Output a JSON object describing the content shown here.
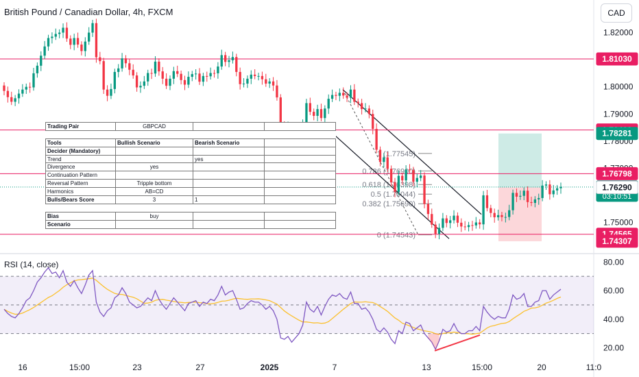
{
  "header": {
    "title": "British Pound / Canadian Dollar, 4h, FXCM",
    "currency_button": "CAD"
  },
  "rsi": {
    "title": "RSI (14, close)"
  },
  "scenario_table": {
    "rows": [
      [
        "Trading Pair",
        "GBPCAD",
        "",
        ""
      ],
      [
        "",
        "",
        "",
        ""
      ],
      [
        "Tools",
        "Bullish Scenario",
        "Bearish Scenario",
        ""
      ],
      [
        "Decider (Mandatory)",
        "",
        "",
        ""
      ],
      [
        "Trend",
        "",
        "yes",
        ""
      ],
      [
        "Divergence",
        "yes",
        "",
        ""
      ],
      [
        "Continuation Pattern",
        "",
        "",
        ""
      ],
      [
        "Reversal Pattern",
        "Tripple bottom",
        "",
        ""
      ],
      [
        "Harmonics",
        "AB=CD",
        "",
        ""
      ],
      [
        "Bulls/Bears Score",
        "3",
        "1",
        ""
      ],
      [
        "",
        "",
        "",
        ""
      ],
      [
        "Bias",
        "buy",
        "",
        ""
      ],
      [
        "Scenario",
        "",
        "",
        ""
      ]
    ]
  },
  "chart_data": [
    {
      "type": "candlestick",
      "title": "British Pound / Canadian Dollar, 4h, FXCM",
      "x_tick_labels": [
        "16",
        "15:00",
        "23",
        "27",
        "2025",
        "7",
        "13",
        "15:00",
        "20",
        "11:0"
      ],
      "y_tick_labels": [
        "1.82000",
        "1.80000",
        "1.79000",
        "1.78000",
        "1.77000",
        "1.75000"
      ],
      "ylim": [
        1.7385,
        1.8295
      ],
      "price_lines": [
        {
          "value": 1.8103,
          "label": "1.81030",
          "color": "#e91e63"
        },
        {
          "value": 1.78409,
          "label": "1.78409",
          "color": "#e91e63"
        },
        {
          "value": 1.76798,
          "label": "1.76798",
          "color": "#e91e63"
        },
        {
          "value": 1.74565,
          "label": "1.74565",
          "color": "#e91e63"
        }
      ],
      "price_labels": [
        {
          "value": 1.78281,
          "label": "1.78281",
          "color": "#089981"
        },
        {
          "value": 1.76306,
          "label": "1.76306",
          "sub": "03:10:51",
          "color": "#089981"
        },
        {
          "value": 1.7629,
          "label": "1.76290",
          "color": "#ffffff"
        },
        {
          "value": 1.74307,
          "label": "1.74307",
          "color": "#e91e63"
        }
      ],
      "fibonacci": [
        {
          "level": "1",
          "price": 1.77545,
          "label": "1 (1.77545)"
        },
        {
          "level": "0.786",
          "price": 1.769,
          "label": "0.786 (1.76900)"
        },
        {
          "level": "0.618",
          "price": 1.76398,
          "label": "0.618 (1.76398)"
        },
        {
          "level": "0.5",
          "price": 1.76044,
          "label": "0.5 (1.76044)"
        },
        {
          "level": "0.382",
          "price": 1.7569,
          "label": "0.382 (1.75690)"
        },
        {
          "level": "0",
          "price": 1.74543,
          "label": "0 (1.74543)"
        }
      ],
      "position": {
        "entry": 1.7629,
        "target": 1.78281,
        "stop": 1.74307
      },
      "close": [
        1.7985,
        1.7962,
        1.7945,
        1.7958,
        1.7975,
        1.799,
        1.8,
        1.7998,
        1.805,
        1.8078,
        1.8115,
        1.8149,
        1.818,
        1.8185,
        1.8195,
        1.82,
        1.8218,
        1.8178,
        1.8155,
        1.818,
        1.8156,
        1.8132,
        1.8167,
        1.82,
        1.8235,
        1.8109,
        1.8095,
        1.799,
        1.7967,
        1.7992,
        1.8055,
        1.8068,
        1.8105,
        1.8087,
        1.8063,
        1.8042,
        1.7998,
        1.8004,
        1.802,
        1.8051,
        1.8049,
        1.8093,
        1.8057,
        1.803,
        1.8004,
        1.803,
        1.8058,
        1.8048,
        1.8025,
        1.8008,
        1.8037,
        1.8047,
        1.8049,
        1.8019,
        1.804,
        1.8039,
        1.8051,
        1.805,
        1.8075,
        1.8117,
        1.8092,
        1.8098,
        1.811,
        1.8055,
        1.801,
        1.8012,
        1.803,
        1.8045,
        1.804,
        1.804,
        1.8028,
        1.8012,
        1.802,
        1.8005,
        1.7961,
        1.7857,
        1.7847,
        1.7852,
        1.7836,
        1.7838,
        1.7848,
        1.7868,
        1.794,
        1.7908,
        1.7893,
        1.7918,
        1.7885,
        1.792,
        1.7956,
        1.797,
        1.7967,
        1.7978,
        1.7968,
        1.796,
        1.799,
        1.7945,
        1.794,
        1.7918,
        1.792,
        1.79,
        1.7845,
        1.7768,
        1.7723,
        1.774,
        1.7698,
        1.7648,
        1.7613,
        1.7672,
        1.7655,
        1.7695,
        1.7693,
        1.765,
        1.7664,
        1.7673,
        1.7568,
        1.7531,
        1.7492,
        1.7458,
        1.748,
        1.7515,
        1.7498,
        1.7508,
        1.7525,
        1.7499,
        1.7485,
        1.7483,
        1.749,
        1.7489,
        1.75,
        1.7493,
        1.76,
        1.7553,
        1.7535,
        1.7519,
        1.7527,
        1.752,
        1.752,
        1.7545,
        1.7609,
        1.7595,
        1.7598,
        1.7617,
        1.7575,
        1.7572,
        1.7585,
        1.759,
        1.7636,
        1.764,
        1.7604,
        1.7618,
        1.7626,
        1.7631
      ],
      "rsi": {
        "ylim": [
          15,
          83
        ],
        "y_tick_labels": [
          "80.00",
          "60.00",
          "40.00",
          "20.00"
        ],
        "band": [
          30,
          70
        ],
        "middle": 50,
        "values": [
          47,
          44,
          42,
          41,
          44,
          48,
          53,
          55,
          60,
          66,
          69,
          73,
          76,
          72,
          73,
          69,
          74,
          66,
          63,
          67,
          62,
          58,
          64,
          71,
          74,
          52,
          45,
          42,
          46,
          48,
          55,
          57,
          62,
          58,
          52,
          50,
          48,
          49,
          52,
          55,
          53,
          60,
          54,
          50,
          47,
          51,
          55,
          52,
          49,
          46,
          51,
          52,
          53,
          49,
          52,
          51,
          54,
          53,
          57,
          63,
          57,
          59,
          60,
          54,
          47,
          48,
          51,
          53,
          52,
          52,
          50,
          47,
          49,
          46,
          40,
          27,
          26,
          28,
          24,
          27,
          30,
          36,
          52,
          47,
          45,
          49,
          43,
          49,
          54,
          57,
          56,
          58,
          55,
          54,
          59,
          51,
          51,
          47,
          48,
          45,
          40,
          33,
          31,
          34,
          31,
          26,
          23,
          32,
          30,
          38,
          37,
          32,
          34,
          36,
          30,
          27,
          24,
          19,
          25,
          33,
          31,
          32,
          37,
          32,
          30,
          30,
          32,
          32,
          35,
          32,
          49,
          45,
          42,
          40,
          42,
          41,
          41,
          47,
          57,
          54,
          55,
          58,
          49,
          49,
          52,
          53,
          60,
          60,
          54,
          57,
          59,
          61
        ]
      }
    }
  ]
}
